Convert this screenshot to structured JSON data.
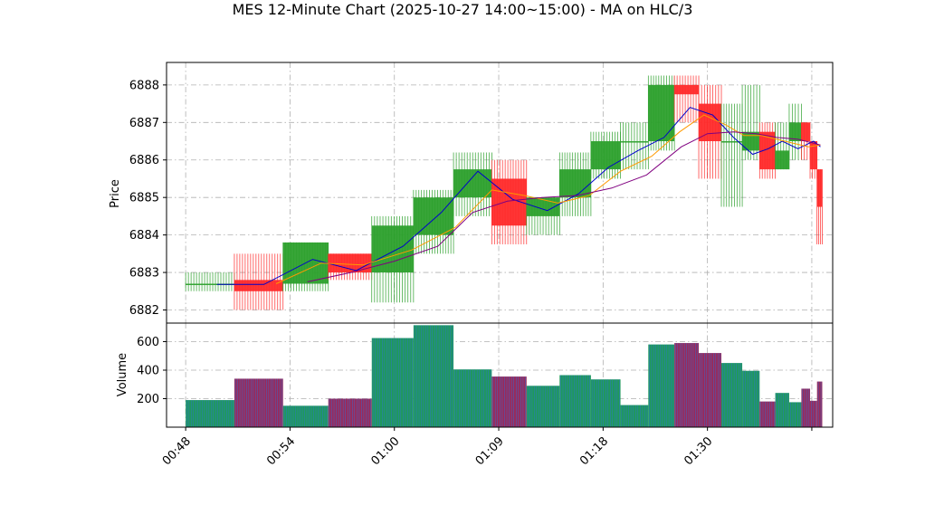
{
  "colors": {
    "up": "#2ca02c",
    "down": "#ff2a2a",
    "ma_fast": "#0000cc",
    "ma_mid": "#ff9900",
    "ma_slow": "#800080",
    "grid": "#b0b0b0",
    "vol_up": "#1f9a5a",
    "vol_down": "#9a2a5a"
  },
  "chart_data": {
    "type": "candlestick",
    "title": "MES 12-Minute Chart (2025-10-27 14:00~15:00) - MA on HLC/3",
    "price_ylabel": "Price",
    "volume_ylabel": "Volume",
    "grid": true,
    "xlim_min": [
      46.9,
      85.2
    ],
    "price_ylim": [
      6881.65,
      6888.6
    ],
    "volume_ylim": [
      0,
      730
    ],
    "x_ticks": [
      {
        "min": 48,
        "label": "00:48"
      },
      {
        "min": 54,
        "label": "00:54"
      },
      {
        "min": 60,
        "label": "01:00"
      },
      {
        "min": 66,
        "label": "01:09"
      },
      {
        "min": 72,
        "label": "01:18"
      },
      {
        "min": 78,
        "label": "01:30"
      },
      {
        "min": 84,
        "label": ""
      }
    ],
    "y_ticks_price": [
      6882,
      6883,
      6884,
      6885,
      6886,
      6887,
      6888
    ],
    "y_ticks_volume": [
      200,
      400,
      600
    ],
    "candles": [
      {
        "x0": 48.0,
        "x1": 50.8,
        "open": 6882.7,
        "high": 6883.0,
        "low": 6882.5,
        "close": 6882.7,
        "volume": 190
      },
      {
        "x0": 50.8,
        "x1": 53.6,
        "open": 6882.8,
        "high": 6883.5,
        "low": 6882.0,
        "close": 6882.5,
        "volume": 340
      },
      {
        "x0": 53.6,
        "x1": 56.2,
        "open": 6882.7,
        "high": 6883.8,
        "low": 6882.5,
        "close": 6883.8,
        "volume": 150
      },
      {
        "x0": 56.2,
        "x1": 58.7,
        "open": 6883.5,
        "high": 6883.5,
        "low": 6882.8,
        "close": 6883.0,
        "volume": 200
      },
      {
        "x0": 58.7,
        "x1": 61.1,
        "open": 6883.0,
        "high": 6884.5,
        "low": 6882.2,
        "close": 6884.25,
        "volume": 625
      },
      {
        "x0": 61.1,
        "x1": 63.4,
        "open": 6884.0,
        "high": 6885.2,
        "low": 6883.5,
        "close": 6885.0,
        "volume": 715
      },
      {
        "x0": 63.4,
        "x1": 65.6,
        "open": 6885.0,
        "high": 6886.2,
        "low": 6884.5,
        "close": 6885.75,
        "volume": 405
      },
      {
        "x0": 65.6,
        "x1": 67.6,
        "open": 6885.5,
        "high": 6886.0,
        "low": 6883.75,
        "close": 6884.25,
        "volume": 355
      },
      {
        "x0": 67.6,
        "x1": 69.5,
        "open": 6884.5,
        "high": 6885.0,
        "low": 6884.0,
        "close": 6885.0,
        "volume": 290
      },
      {
        "x0": 69.5,
        "x1": 71.3,
        "open": 6885.0,
        "high": 6886.2,
        "low": 6884.5,
        "close": 6885.75,
        "volume": 365
      },
      {
        "x0": 71.3,
        "x1": 73.0,
        "open": 6885.75,
        "high": 6886.75,
        "low": 6885.5,
        "close": 6886.5,
        "volume": 335
      },
      {
        "x0": 73.0,
        "x1": 74.6,
        "open": 6886.5,
        "high": 6887.0,
        "low": 6885.75,
        "close": 6886.5,
        "volume": 155
      },
      {
        "x0": 74.6,
        "x1": 76.1,
        "open": 6886.5,
        "high": 6888.25,
        "low": 6886.25,
        "close": 6888.0,
        "volume": 580
      },
      {
        "x0": 76.1,
        "x1": 77.5,
        "open": 6888.0,
        "high": 6888.25,
        "low": 6887.0,
        "close": 6887.75,
        "volume": 590
      },
      {
        "x0": 77.5,
        "x1": 78.8,
        "open": 6887.5,
        "high": 6888.0,
        "low": 6885.5,
        "close": 6886.5,
        "volume": 520
      },
      {
        "x0": 78.8,
        "x1": 80.0,
        "open": 6886.5,
        "high": 6887.5,
        "low": 6884.75,
        "close": 6886.5,
        "volume": 450
      },
      {
        "x0": 80.0,
        "x1": 81.0,
        "open": 6886.25,
        "high": 6888.0,
        "low": 6886.0,
        "close": 6886.75,
        "volume": 395
      },
      {
        "x0": 81.0,
        "x1": 81.9,
        "open": 6886.75,
        "high": 6887.0,
        "low": 6885.5,
        "close": 6885.75,
        "volume": 180
      },
      {
        "x0": 81.9,
        "x1": 82.7,
        "open": 6885.75,
        "high": 6887.0,
        "low": 6885.75,
        "close": 6886.25,
        "volume": 240
      },
      {
        "x0": 82.7,
        "x1": 83.4,
        "open": 6886.5,
        "high": 6887.5,
        "low": 6886.0,
        "close": 6887.0,
        "volume": 175
      },
      {
        "x0": 83.4,
        "x1": 83.9,
        "open": 6887.0,
        "high": 6887.0,
        "low": 6886.0,
        "close": 6886.5,
        "volume": 270
      },
      {
        "x0": 83.9,
        "x1": 84.3,
        "open": 6886.5,
        "high": 6886.5,
        "low": 6885.5,
        "close": 6885.75,
        "volume": 185
      },
      {
        "x0": 84.3,
        "x1": 84.6,
        "open": 6885.75,
        "high": 6885.75,
        "low": 6883.75,
        "close": 6884.75,
        "volume": 320
      }
    ],
    "ma_series": [
      {
        "key": "ma_fast",
        "points": [
          [
            49.8,
            6882.68
          ],
          [
            52.5,
            6882.68
          ],
          [
            55.3,
            6883.35
          ],
          [
            57.8,
            6883.05
          ],
          [
            60.5,
            6883.7
          ],
          [
            62.7,
            6884.6
          ],
          [
            64.8,
            6885.7
          ],
          [
            66.8,
            6884.95
          ],
          [
            68.8,
            6884.65
          ],
          [
            70.6,
            6885.1
          ],
          [
            72.3,
            6885.8
          ],
          [
            74.0,
            6886.25
          ],
          [
            75.5,
            6886.6
          ],
          [
            77.0,
            6887.4
          ],
          [
            78.3,
            6887.2
          ],
          [
            79.5,
            6886.6
          ],
          [
            80.6,
            6886.15
          ],
          [
            81.5,
            6886.3
          ],
          [
            82.3,
            6886.5
          ],
          [
            83.2,
            6886.3
          ],
          [
            84.1,
            6886.5
          ],
          [
            84.5,
            6886.35
          ]
        ]
      },
      {
        "key": "ma_mid",
        "points": [
          [
            53.2,
            6882.7
          ],
          [
            55.8,
            6883.25
          ],
          [
            58.2,
            6883.2
          ],
          [
            61.0,
            6883.6
          ],
          [
            63.5,
            6884.2
          ],
          [
            65.6,
            6885.2
          ],
          [
            67.5,
            6885.05
          ],
          [
            69.4,
            6884.85
          ],
          [
            71.2,
            6885.05
          ],
          [
            73.0,
            6885.7
          ],
          [
            74.8,
            6886.1
          ],
          [
            76.4,
            6886.75
          ],
          [
            77.8,
            6887.2
          ],
          [
            79.0,
            6886.95
          ],
          [
            80.1,
            6886.65
          ],
          [
            81.1,
            6886.65
          ],
          [
            82.0,
            6886.55
          ],
          [
            82.9,
            6886.45
          ],
          [
            83.8,
            6886.35
          ],
          [
            84.5,
            6886.4
          ]
        ]
      },
      {
        "key": "ma_slow",
        "points": [
          [
            55.0,
            6882.75
          ],
          [
            57.5,
            6883.0
          ],
          [
            60.0,
            6883.3
          ],
          [
            62.5,
            6883.7
          ],
          [
            64.5,
            6884.6
          ],
          [
            66.5,
            6884.9
          ],
          [
            68.5,
            6885.0
          ],
          [
            70.5,
            6885.05
          ],
          [
            72.5,
            6885.25
          ],
          [
            74.5,
            6885.6
          ],
          [
            76.5,
            6886.35
          ],
          [
            78.0,
            6886.7
          ],
          [
            79.5,
            6886.75
          ],
          [
            80.8,
            6886.7
          ],
          [
            82.0,
            6886.6
          ],
          [
            83.2,
            6886.55
          ],
          [
            84.5,
            6886.4
          ]
        ]
      }
    ]
  }
}
